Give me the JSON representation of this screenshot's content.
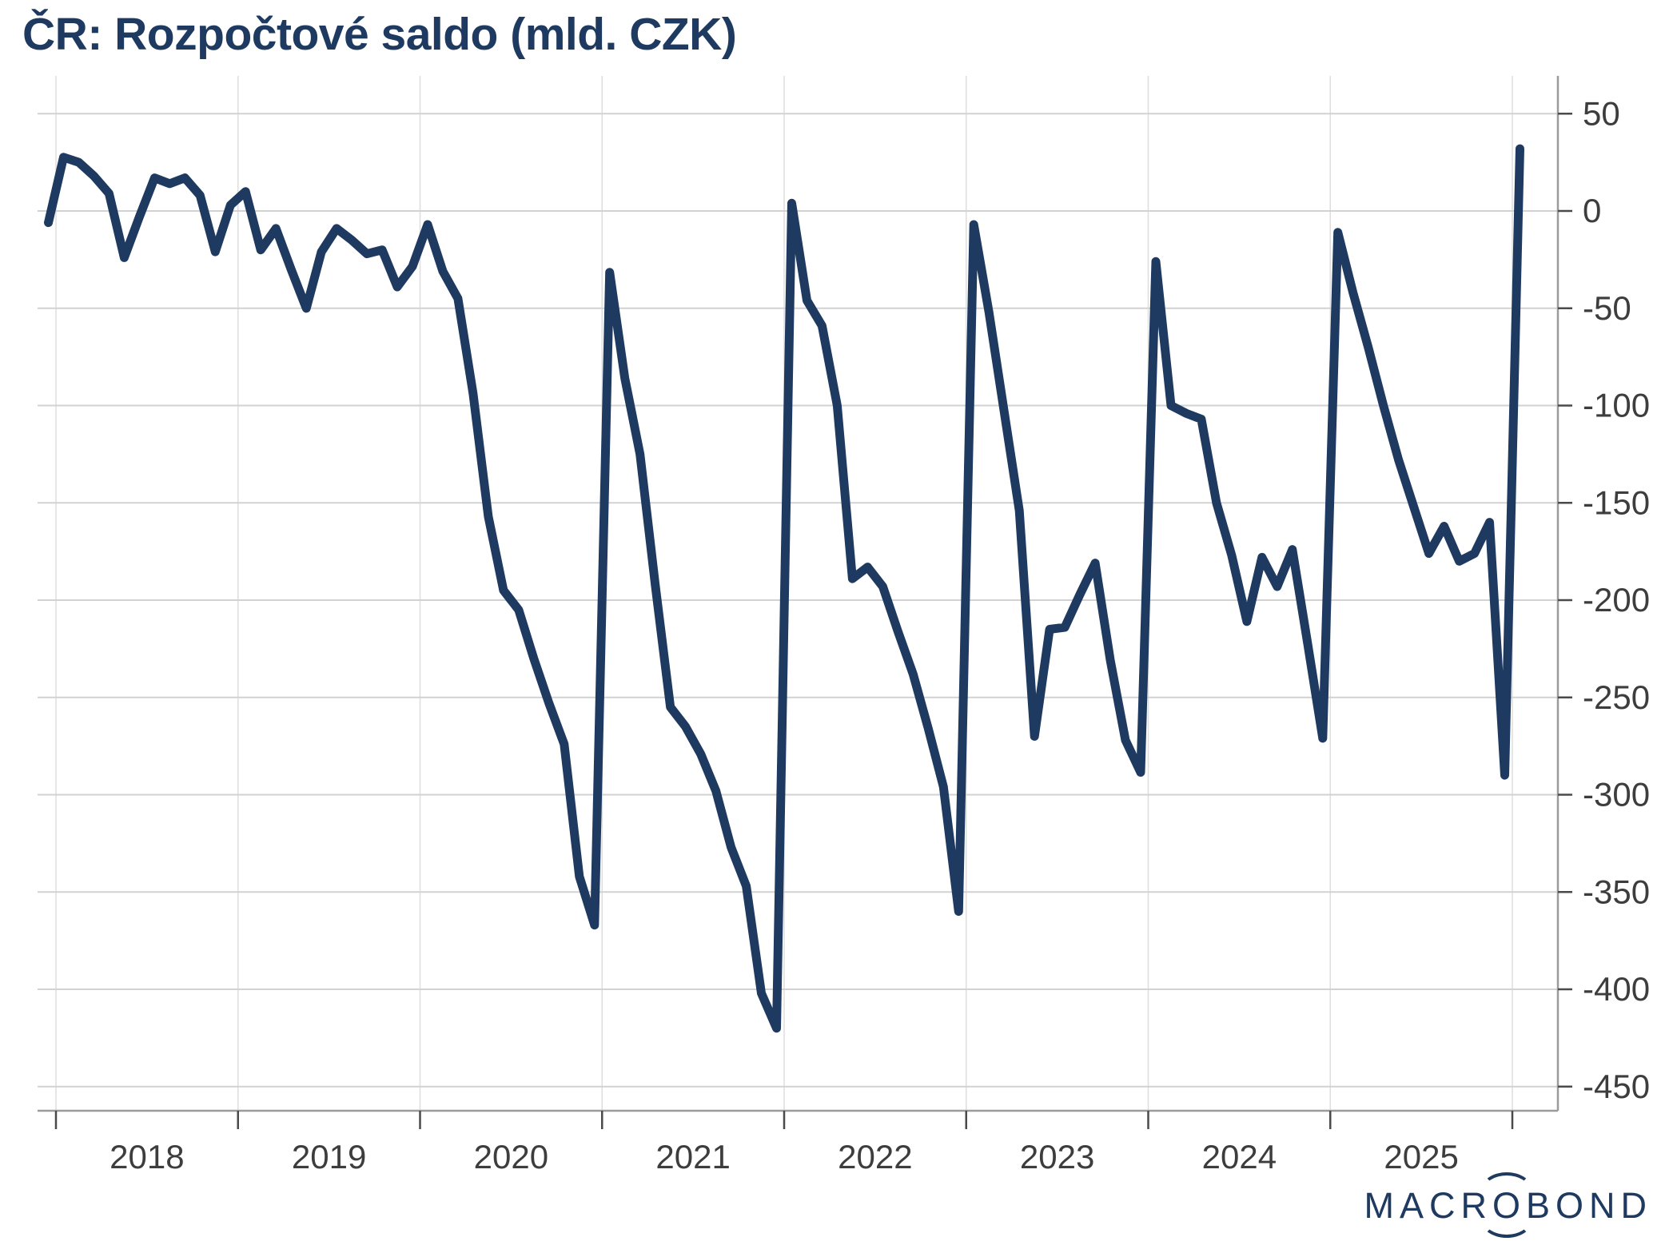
{
  "title": "ČR: Rozpočtové saldo (mld. CZK)",
  "branding": {
    "logo_pre": "MACR",
    "logo_o": "O",
    "logo_post": "BOND"
  },
  "colors": {
    "line": "#1f3a60",
    "title": "#1f3a60",
    "logo": "#1f3a60",
    "gridline_h": "#d2d2d2",
    "gridline_v": "#dedede",
    "axis_line": "#9b9b9b",
    "tick_mark": "#4a4a4a",
    "axis_text": "#3d3d3d",
    "background": "#ffffff"
  },
  "chart_data": {
    "type": "line",
    "title": "ČR: Rozpočtové saldo (mld. CZK)",
    "ylabel": "",
    "xlabel": "",
    "unit": "mld. CZK",
    "frequency": "monthly",
    "start_date": "2017-12",
    "end_date": "2026-01",
    "ylim": [
      -475,
      75
    ],
    "y_ticks": [
      50,
      0,
      -50,
      -100,
      -150,
      -200,
      -250,
      -300,
      -350,
      -400,
      -450
    ],
    "x_tick_labels": [
      "2018",
      "2019",
      "2020",
      "2021",
      "2022",
      "2023",
      "2024",
      "2025"
    ],
    "grid": "on",
    "y_axis_position": "right",
    "legend": "none",
    "series": [
      {
        "name": "Rozpočtové saldo",
        "values": [
          -6,
          27.6,
          25,
          18,
          9,
          -24,
          -3,
          17,
          14,
          17,
          8,
          -21,
          3,
          10,
          -20,
          -9,
          -30,
          -50,
          -21,
          -9,
          -15,
          -22,
          -20,
          -39,
          -28.5,
          -7,
          -31,
          -45,
          -94,
          -157,
          -195,
          -205,
          -230,
          -253,
          -274,
          -342,
          -367,
          -31.5,
          -86,
          -125,
          -192,
          -255,
          -265,
          -279,
          -298,
          -327,
          -347,
          -402,
          -420,
          4,
          -46,
          -59,
          -100,
          -189,
          -183,
          -193,
          -216,
          -238,
          -266,
          -296,
          -360,
          -7,
          -52,
          -103,
          -154,
          -270,
          -215,
          -214,
          -197,
          -181,
          -231,
          -272,
          -288.5,
          -26,
          -100,
          -104,
          -107,
          -150,
          -177,
          -211,
          -178,
          -193,
          -174,
          -222,
          -271,
          -11,
          -42,
          -70,
          -100,
          -128,
          -152,
          -176,
          -162,
          -180,
          -176,
          -160,
          -290,
          32
        ]
      }
    ]
  }
}
